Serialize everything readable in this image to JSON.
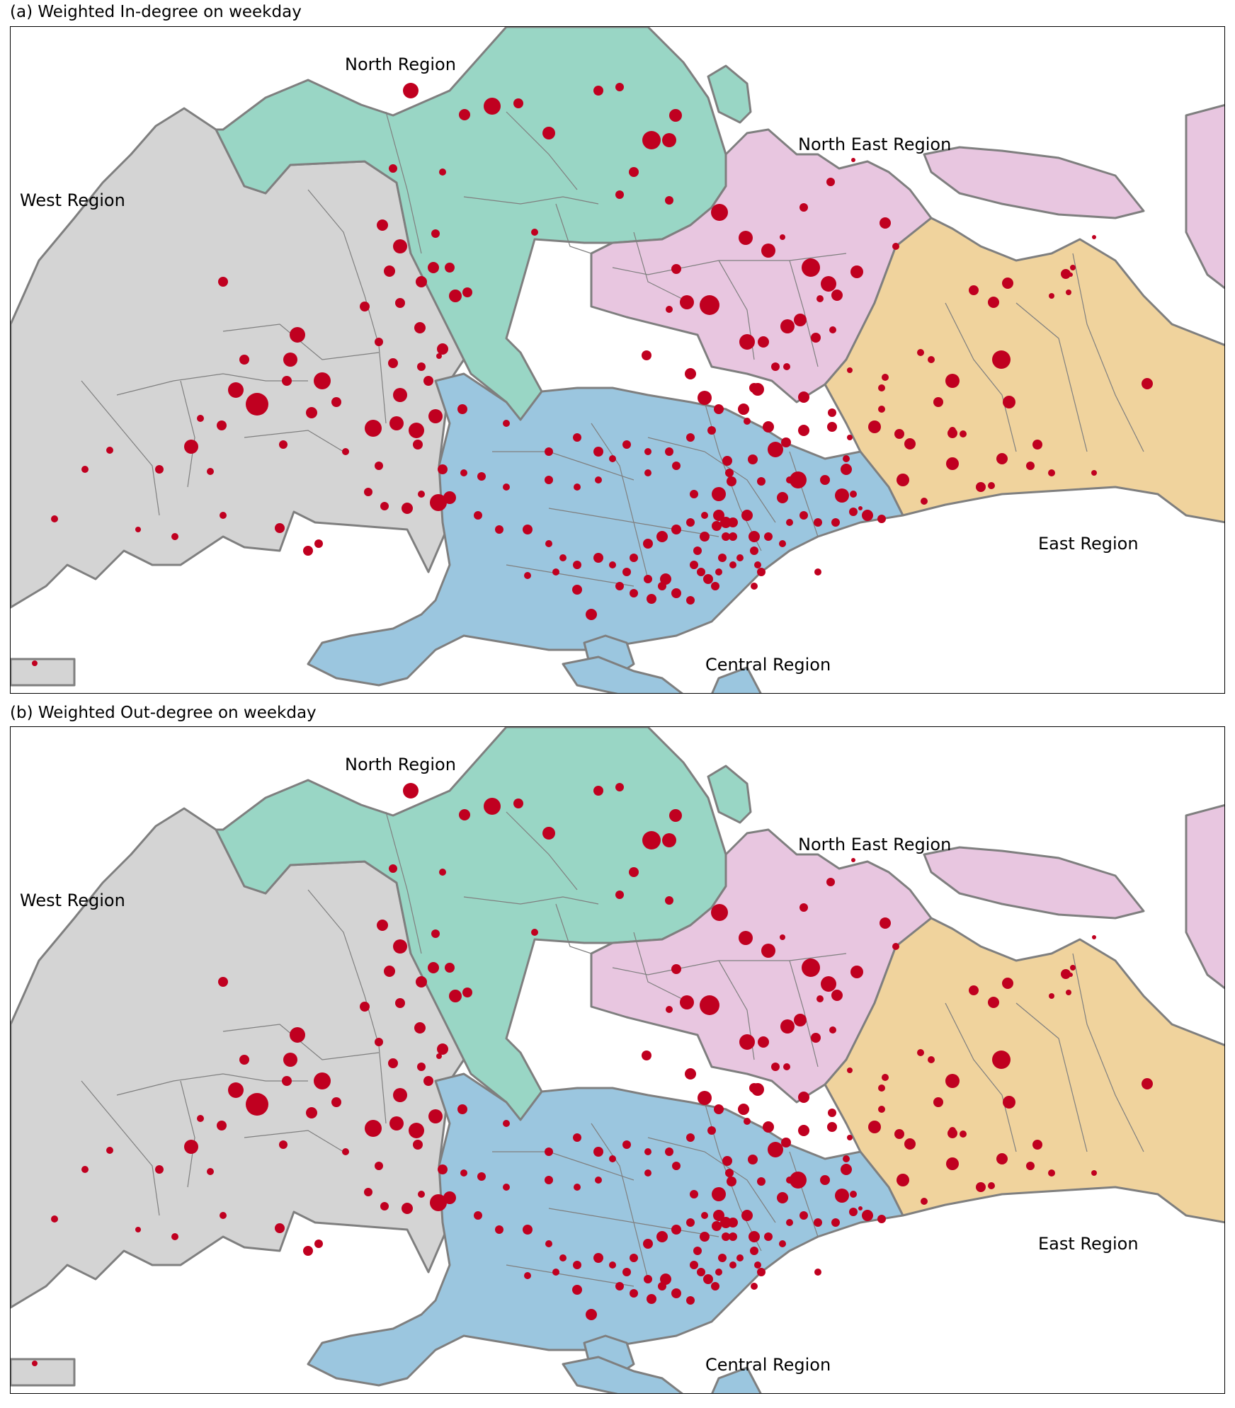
{
  "panels": [
    {
      "title": "(a) Weighted In-degree on weekday",
      "regions": {
        "north": "North Region",
        "north_east": "North East Region",
        "west": "West Region",
        "east": "East Region",
        "central": "Central Region"
      }
    },
    {
      "title": "(b) Weighted Out-degree on weekday",
      "regions": {
        "north": "North Region",
        "north_east": "North East Region",
        "west": "West Region",
        "east": "East Region",
        "central": "Central Region"
      }
    }
  ],
  "colors": {
    "west": "#d4d4d4",
    "north": "#99d6c5",
    "north_east": "#e8c6e0",
    "east": "#f0d39d",
    "central": "#9bc6df",
    "bubble": "#c00020",
    "coastline": "#7f7f7f"
  }
}
